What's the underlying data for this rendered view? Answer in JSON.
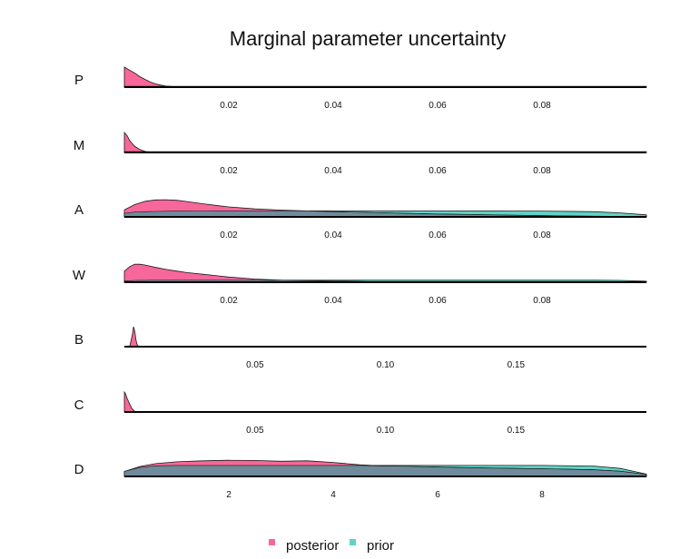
{
  "chart_data": {
    "type": "area",
    "title": "Marginal parameter uncertainty",
    "legend": {
      "placement": "bottom",
      "items": [
        {
          "name": "posterior",
          "color": "#f7679a"
        },
        {
          "name": "prior",
          "color": "#5fd3c7"
        }
      ]
    },
    "overlap_color": "#6f8b9c",
    "panels": [
      {
        "label": "P",
        "xlim": [
          0,
          0.1
        ],
        "ticks": [
          0.02,
          0.04,
          0.06,
          0.08
        ],
        "tick_labels": [
          "0.02",
          "0.04",
          "0.06",
          "0.08"
        ],
        "posterior": {
          "x": [
            0,
            0.001,
            0.002,
            0.003,
            0.004,
            0.005,
            0.006,
            0.007,
            0.008,
            0.009,
            0.01,
            0.012,
            0.1
          ],
          "y": [
            1.0,
            0.85,
            0.7,
            0.52,
            0.38,
            0.25,
            0.16,
            0.1,
            0.05,
            0.03,
            0.015,
            0.0,
            0.0
          ]
        },
        "prior": {
          "x": [
            0,
            0.1
          ],
          "y": [
            0.04,
            0.04
          ]
        }
      },
      {
        "label": "M",
        "xlim": [
          0,
          0.1
        ],
        "ticks": [
          0.02,
          0.04,
          0.06,
          0.08
        ],
        "tick_labels": [
          "0.02",
          "0.04",
          "0.06",
          "0.08"
        ],
        "posterior": {
          "x": [
            0,
            0.0005,
            0.001,
            0.0015,
            0.002,
            0.003,
            0.004,
            0.005,
            0.006,
            0.1
          ],
          "y": [
            1.0,
            0.85,
            0.6,
            0.45,
            0.3,
            0.14,
            0.05,
            0.01,
            0.0,
            0.0
          ]
        },
        "prior": {
          "x": [
            0,
            0.1
          ],
          "y": [
            0.04,
            0.04
          ]
        }
      },
      {
        "label": "A",
        "xlim": [
          0,
          0.1
        ],
        "ticks": [
          0.02,
          0.04,
          0.06,
          0.08
        ],
        "tick_labels": [
          "0.02",
          "0.04",
          "0.06",
          "0.08"
        ],
        "posterior": {
          "x": [
            0,
            0.002,
            0.004,
            0.006,
            0.008,
            0.01,
            0.012,
            0.015,
            0.018,
            0.02,
            0.025,
            0.03,
            0.035,
            0.04,
            0.05,
            0.06,
            0.07,
            0.08,
            0.09,
            0.1
          ],
          "y": [
            0.35,
            0.62,
            0.78,
            0.85,
            0.86,
            0.83,
            0.77,
            0.66,
            0.56,
            0.5,
            0.4,
            0.34,
            0.3,
            0.26,
            0.2,
            0.14,
            0.1,
            0.06,
            0.03,
            0.01
          ]
        },
        "prior": {
          "x": [
            0,
            0.002,
            0.005,
            0.01,
            0.02,
            0.03,
            0.04,
            0.05,
            0.06,
            0.07,
            0.08,
            0.09,
            0.095,
            0.1
          ],
          "y": [
            0.18,
            0.24,
            0.27,
            0.29,
            0.3,
            0.3,
            0.3,
            0.3,
            0.3,
            0.3,
            0.29,
            0.26,
            0.2,
            0.1
          ]
        }
      },
      {
        "label": "W",
        "xlim": [
          0,
          0.1
        ],
        "ticks": [
          0.02,
          0.04,
          0.06,
          0.08
        ],
        "tick_labels": [
          "0.02",
          "0.04",
          "0.06",
          "0.08"
        ],
        "posterior": {
          "x": [
            0,
            0.001,
            0.002,
            0.003,
            0.004,
            0.006,
            0.008,
            0.01,
            0.012,
            0.015,
            0.018,
            0.02,
            0.025,
            0.03,
            0.04,
            0.05,
            0.06,
            0.08,
            0.1
          ],
          "y": [
            0.55,
            0.78,
            0.9,
            0.9,
            0.86,
            0.74,
            0.64,
            0.56,
            0.48,
            0.4,
            0.32,
            0.26,
            0.16,
            0.1,
            0.05,
            0.02,
            0.01,
            0.0,
            0.0
          ]
        },
        "prior": {
          "x": [
            0,
            0.002,
            0.005,
            0.01,
            0.02,
            0.03,
            0.04,
            0.05,
            0.06,
            0.07,
            0.08,
            0.09,
            0.095,
            0.1
          ],
          "y": [
            0.06,
            0.09,
            0.1,
            0.1,
            0.1,
            0.1,
            0.1,
            0.1,
            0.1,
            0.1,
            0.1,
            0.1,
            0.09,
            0.05
          ]
        }
      },
      {
        "label": "B",
        "xlim": [
          0,
          0.2
        ],
        "ticks": [
          0.05,
          0.1,
          0.15
        ],
        "tick_labels": [
          "0.05",
          "0.10",
          "0.15"
        ],
        "posterior": {
          "x": [
            0,
            0.002,
            0.003,
            0.0035,
            0.004,
            0.0045,
            0.005,
            0.006,
            0.2
          ],
          "y": [
            0.0,
            0.0,
            0.55,
            1.0,
            0.75,
            0.3,
            0.05,
            0.0,
            0.0
          ]
        },
        "prior": {
          "x": [
            0,
            0.2
          ],
          "y": [
            0.0,
            0.0
          ]
        }
      },
      {
        "label": "C",
        "xlim": [
          0,
          0.2
        ],
        "ticks": [
          0.05,
          0.1,
          0.15
        ],
        "tick_labels": [
          "0.05",
          "0.10",
          "0.15"
        ],
        "posterior": {
          "x": [
            0,
            0.0005,
            0.001,
            0.002,
            0.003,
            0.004,
            0.005,
            0.2
          ],
          "y": [
            1.0,
            0.9,
            0.7,
            0.4,
            0.15,
            0.03,
            0.0,
            0.0
          ]
        },
        "prior": {
          "x": [
            0,
            0.2
          ],
          "y": [
            0.0,
            0.0
          ]
        }
      },
      {
        "label": "D",
        "xlim": [
          0,
          10
        ],
        "ticks": [
          2,
          4,
          6,
          8
        ],
        "tick_labels": [
          "2",
          "4",
          "6",
          "8"
        ],
        "posterior": {
          "x": [
            0,
            0.3,
            0.6,
            1,
            1.5,
            2,
            2.5,
            3,
            3.5,
            4,
            4.5,
            5,
            5.5,
            6,
            6.5,
            7,
            7.5,
            8,
            8.5,
            9,
            9.5,
            10
          ],
          "y": [
            0.25,
            0.5,
            0.64,
            0.73,
            0.78,
            0.81,
            0.8,
            0.76,
            0.78,
            0.7,
            0.58,
            0.52,
            0.5,
            0.47,
            0.44,
            0.42,
            0.4,
            0.38,
            0.36,
            0.33,
            0.26,
            0.1
          ]
        },
        "prior": {
          "x": [
            0,
            0.3,
            0.6,
            1,
            2,
            3,
            4,
            5,
            6,
            7,
            8,
            9,
            9.5,
            10
          ],
          "y": [
            0.25,
            0.45,
            0.53,
            0.55,
            0.55,
            0.55,
            0.55,
            0.55,
            0.55,
            0.55,
            0.55,
            0.52,
            0.4,
            0.12
          ]
        }
      }
    ]
  }
}
